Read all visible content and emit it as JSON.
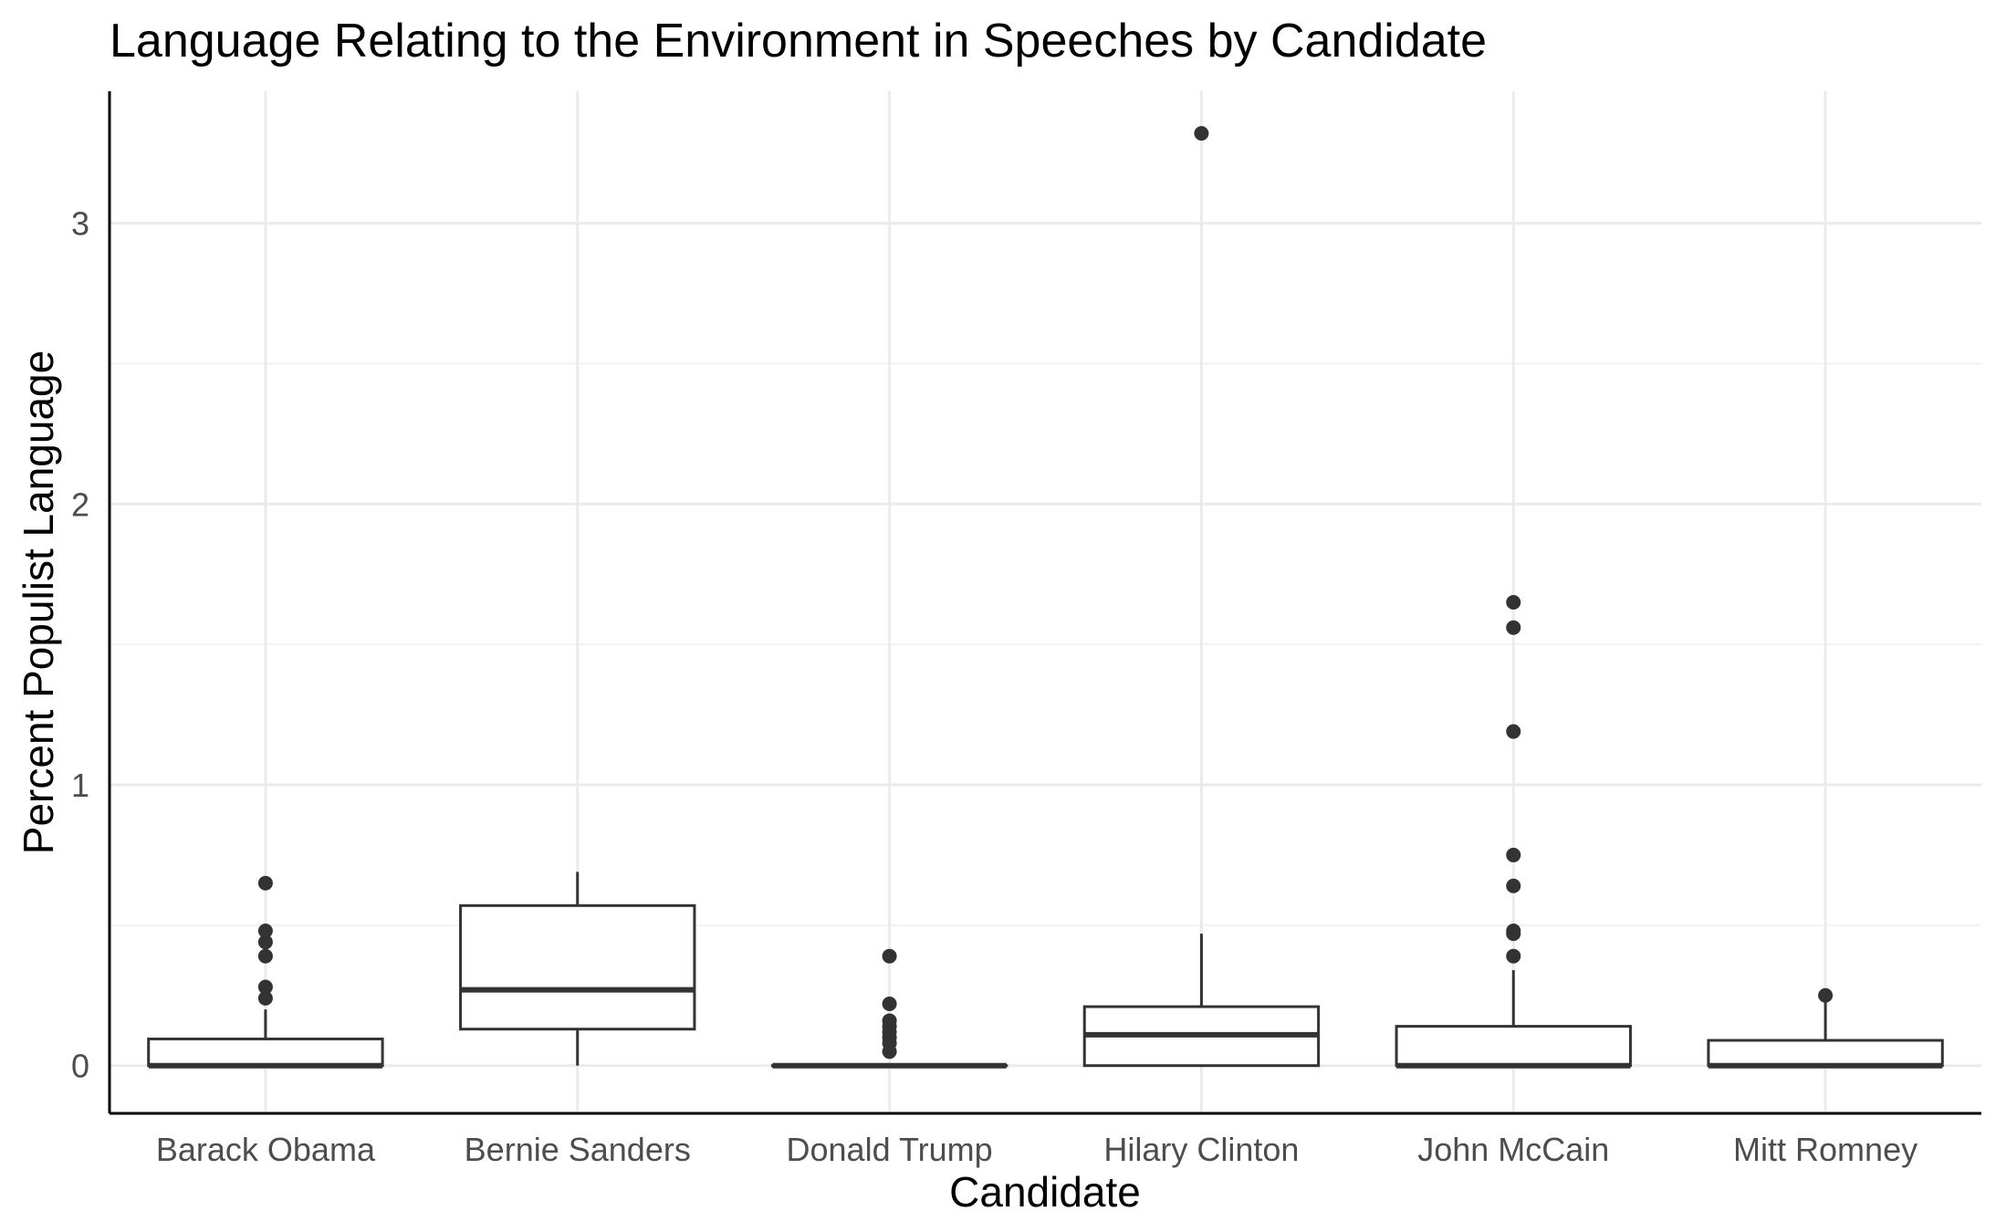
{
  "chart_data": {
    "type": "boxplot",
    "title": "Language Relating to the Environment in Speeches by Candidate",
    "xlabel": "Candidate",
    "ylabel": "Percent Populist Language",
    "ylim": [
      -0.17,
      3.47
    ],
    "yticks": [
      0,
      1,
      2,
      3
    ],
    "ytick_labels": [
      "0",
      "1",
      "2",
      "3"
    ],
    "grid": true,
    "categories": [
      "Barack Obama",
      "Bernie Sanders",
      "Donald Trump",
      "Hilary Clinton",
      "John McCain",
      "Mitt Romney"
    ],
    "boxes": [
      {
        "name": "Barack Obama",
        "whisker_low": 0,
        "q1": 0,
        "median": 0,
        "q3": 0.095,
        "whisker_high": 0.2,
        "outliers": [
          0.65,
          0.48,
          0.44,
          0.39,
          0.28,
          0.24
        ]
      },
      {
        "name": "Bernie Sanders",
        "whisker_low": 0,
        "q1": 0.13,
        "median": 0.27,
        "q3": 0.57,
        "whisker_high": 0.69,
        "outliers": []
      },
      {
        "name": "Donald Trump",
        "whisker_low": 0,
        "q1": 0,
        "median": 0,
        "q3": 0,
        "whisker_high": 0,
        "outliers": [
          0.39,
          0.22,
          0.16,
          0.14,
          0.12,
          0.1,
          0.08,
          0.05
        ]
      },
      {
        "name": "Hilary Clinton",
        "whisker_low": 0,
        "q1": 0,
        "median": 0.11,
        "q3": 0.21,
        "whisker_high": 0.47,
        "outliers": [
          3.32
        ]
      },
      {
        "name": "John McCain",
        "whisker_low": 0,
        "q1": 0,
        "median": 0,
        "q3": 0.14,
        "whisker_high": 0.34,
        "outliers": [
          1.65,
          1.56,
          1.19,
          0.75,
          0.64,
          0.48,
          0.47,
          0.39
        ]
      },
      {
        "name": "Mitt Romney",
        "whisker_low": 0,
        "q1": 0,
        "median": 0,
        "q3": 0.09,
        "whisker_high": 0.25,
        "outliers": [
          0.25
        ]
      }
    ],
    "colors": {
      "box_stroke": "#333333",
      "box_fill": "#ffffff",
      "grid": "#ebebeb",
      "text": "#000000",
      "tick": "#4d4d4d"
    }
  }
}
